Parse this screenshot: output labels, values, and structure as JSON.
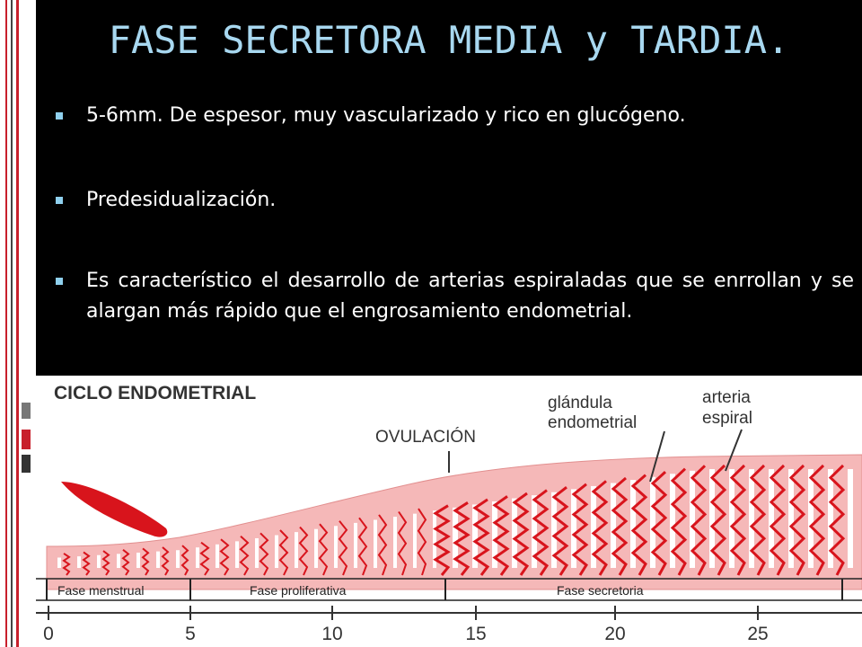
{
  "slide": {
    "title": "FASE SECRETORA MEDIA y TARDIA.",
    "bullets": [
      "5-6mm. De espesor, muy vascularizado y rico en glucógeno.",
      "Predesidualización.",
      "Es característico el desarrollo de arterias espiraladas que se enrrollan y se alargan más rápido que el engrosamiento endometrial."
    ]
  },
  "figure": {
    "title": "CICLO ENDOMETRIAL",
    "labels": {
      "ovulation": "OVULACIÓN",
      "gland_line1": "glándula",
      "gland_line2": "endometrial",
      "artery_line1": "arteria",
      "artery_line2": "espiral"
    },
    "phases": [
      "Fase menstrual",
      "Fase proliferativa",
      "Fase secretoria"
    ],
    "day_ticks": [
      "0",
      "5",
      "10",
      "15",
      "20",
      "25"
    ]
  },
  "colors": {
    "title": "#a8d8f0",
    "bullet": "#8fd0ee",
    "tissue": "#f5b8b8",
    "vessel": "#d8141c",
    "strip_accent": "#c8202c"
  }
}
